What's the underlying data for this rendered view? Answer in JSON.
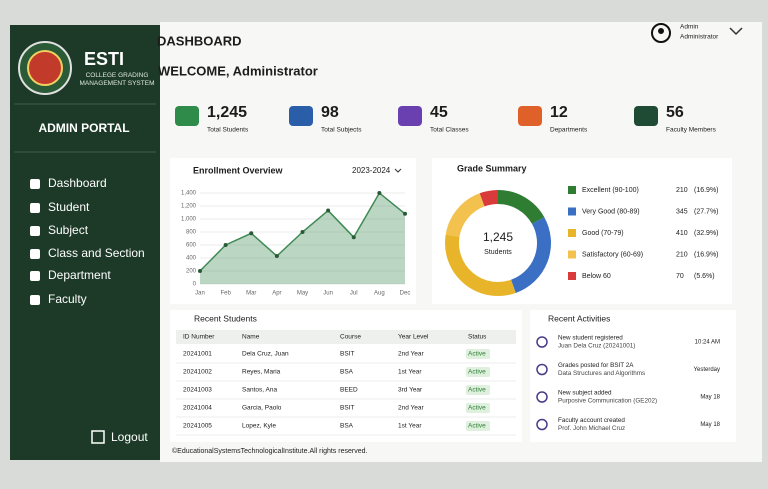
{
  "sidebar": {
    "brand": "ESTI",
    "subtitle": "COLLEGE GRADING MANAGEMENT SYSTEM",
    "portal": "ADMIN PORTAL",
    "nav": [
      "Dashboard",
      "Student",
      "Subject",
      "Class and Section",
      "Department",
      "Faculty"
    ],
    "logout": "Logout"
  },
  "header": {
    "title": "DASHBOARD",
    "welcome": "WELCOME, Administrator",
    "user_name": "Admin",
    "user_role": "Administrator"
  },
  "stats": [
    {
      "value": "1,245",
      "label": "Total Students",
      "color": "#2e8b4a"
    },
    {
      "value": "98",
      "label": "Total Subjects",
      "color": "#2a5ea8"
    },
    {
      "value": "45",
      "label": "Total Classes",
      "color": "#6a3fb0"
    },
    {
      "value": "12",
      "label": "Departments",
      "color": "#e0602a"
    },
    {
      "value": "56",
      "label": "Faculty Members",
      "color": "#1f4a33"
    }
  ],
  "chart_data": [
    {
      "type": "area",
      "title": "Enrollment Overview",
      "period": "2023-2024",
      "categories": [
        "Jan",
        "Feb",
        "Mar",
        "Apr",
        "May",
        "Jun",
        "Jul",
        "Aug",
        "Dec"
      ],
      "series": [
        {
          "name": "Enrollment",
          "color": "#3f8a55",
          "values": [
            200,
            600,
            780,
            430,
            800,
            1130,
            720,
            1400,
            1080
          ]
        }
      ],
      "ylim": [
        0,
        1400
      ],
      "yticks": [
        0,
        200,
        400,
        600,
        800,
        {
          "value": 1000,
          "label": "1,000"
        },
        {
          "value": 1200,
          "label": "1,200"
        },
        {
          "value": 1400,
          "label": "1,400"
        }
      ],
      "grid": true
    },
    {
      "type": "donut",
      "title": "Grade Summary",
      "center_value": "1,245",
      "center_label": "Students",
      "categories": [
        "Excellent (90-100)",
        "Very Good (80-89)",
        "Good (70-79)",
        "Satisfactory (60-69)",
        "Below 60"
      ],
      "values": [
        210,
        345,
        410,
        210,
        70
      ],
      "shares": [
        16.9,
        27.7,
        32.9,
        16.9,
        5.6
      ],
      "share_labels": [
        "(16.9%)",
        "(27.7%)",
        "(32.9%)",
        "(16.9%)",
        "(5.6%)"
      ],
      "colors": [
        "#2e7d32",
        "#3a6fc4",
        "#e8b52a",
        "#f2c14e",
        "#d93a3a"
      ]
    }
  ],
  "students": {
    "title": "Recent Students",
    "columns": [
      "ID Number",
      "Name",
      "Course",
      "Year Level",
      "Status"
    ],
    "rows": [
      [
        "20241001",
        "Dela Cruz, Juan",
        "BSIT",
        "2nd Year",
        "Active"
      ],
      [
        "20241002",
        "Reyes, Maria",
        "BSA",
        "1st Year",
        "Active"
      ],
      [
        "20241003",
        "Santos, Ana",
        "BEED",
        "3rd Year",
        "Active"
      ],
      [
        "20241004",
        "Garcia, Paolo",
        "BSIT",
        "2nd Year",
        "Active"
      ],
      [
        "20241005",
        "Lopez, Kyle",
        "BSA",
        "1st Year",
        "Active"
      ]
    ]
  },
  "activities": {
    "title": "Recent Activities",
    "items": [
      {
        "title": "New student registered",
        "detail": "Juan Dela Cruz (20241001)",
        "time": "10:24 AM"
      },
      {
        "title": "Grades posted for BSIT 2A",
        "detail": "Data Structures and Algorithms",
        "time": "Yesterday"
      },
      {
        "title": "New subject added",
        "detail": "Purposive Communication (GE202)",
        "time": "May 18"
      },
      {
        "title": "Faculty account created",
        "detail": "Prof. John Michael Cruz",
        "time": "May 18"
      }
    ]
  },
  "footer": "©EducationalSystemsTechnologicalInstitute.All rights reserved."
}
